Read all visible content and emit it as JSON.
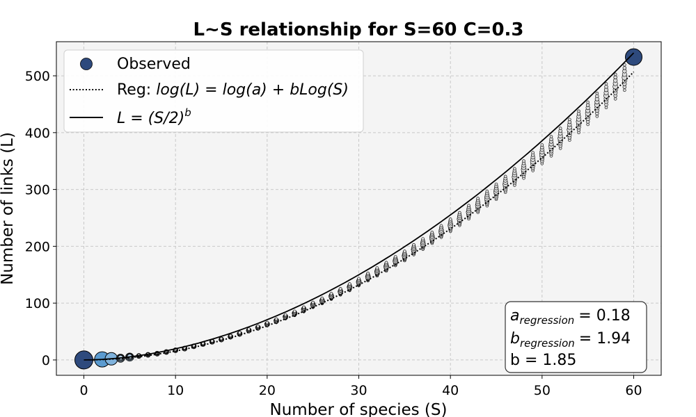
{
  "chart_data": {
    "type": "scatter",
    "title": "L~S relationship for S=60 C=0.3",
    "xlabel": "Number of species (S)",
    "ylabel": "Number of links (L)",
    "xlim": [
      -3,
      63
    ],
    "ylim": [
      -27,
      560
    ],
    "xticks": [
      0,
      10,
      20,
      30,
      40,
      50,
      60
    ],
    "yticks": [
      0,
      100,
      200,
      300,
      400,
      500
    ],
    "grid": true,
    "legend_position": "top-left",
    "series": [
      {
        "name": "Observed",
        "kind": "scatter",
        "color": "#2e4a7d",
        "note_points": "replicate observed networks at each S from 0 to 60",
        "x": [
          0,
          2,
          3,
          4,
          5,
          6,
          7,
          8,
          9,
          10,
          11,
          12,
          13,
          14,
          15,
          16,
          17,
          18,
          19,
          20,
          21,
          22,
          23,
          24,
          25,
          26,
          27,
          28,
          29,
          30,
          31,
          32,
          33,
          34,
          35,
          36,
          37,
          38,
          39,
          40,
          41,
          42,
          43,
          44,
          45,
          46,
          47,
          48,
          49,
          50,
          51,
          52,
          53,
          54,
          55,
          56,
          57,
          58,
          59,
          60
        ],
        "y_center": [
          0,
          1,
          2,
          3,
          5,
          7,
          9,
          11,
          14,
          17,
          20,
          24,
          28,
          32,
          36,
          41,
          46,
          52,
          57,
          63,
          69,
          76,
          82,
          89,
          97,
          104,
          112,
          120,
          128,
          137,
          146,
          155,
          164,
          174,
          183,
          194,
          204,
          215,
          226,
          237,
          248,
          260,
          272,
          284,
          296,
          309,
          322,
          335,
          349,
          362,
          376,
          390,
          405,
          419,
          434,
          449,
          465,
          481,
          497,
          533
        ]
      },
      {
        "name": "Reg: log(L) = log(a) + bLog(S)",
        "kind": "line",
        "style": "dotted",
        "a": 0.18,
        "b": 1.94
      },
      {
        "name": "L = (S/2)^b",
        "kind": "line",
        "style": "solid",
        "b": 1.85
      }
    ],
    "annotations": {
      "a_regression": {
        "symbol": "a",
        "subscript": "regression",
        "value": "= 0.18"
      },
      "b_regression": {
        "symbol": "b",
        "subscript": "regression",
        "value": "= 1.94"
      },
      "b_text": "b = 1.85"
    },
    "colors": {
      "plot_background": "#f4f4f4",
      "large_marker": "#2e4a7d",
      "mid_marker": "#5b9bd0",
      "small_marker": "#b8d2e8"
    }
  },
  "legend": {
    "observed_label": "Observed",
    "reg_prefix": "Reg: ",
    "reg_formula": "log(L) = log(a) + bLog(S)",
    "power_formula_base": "L = (S/2)",
    "power_formula_exp": "b"
  }
}
